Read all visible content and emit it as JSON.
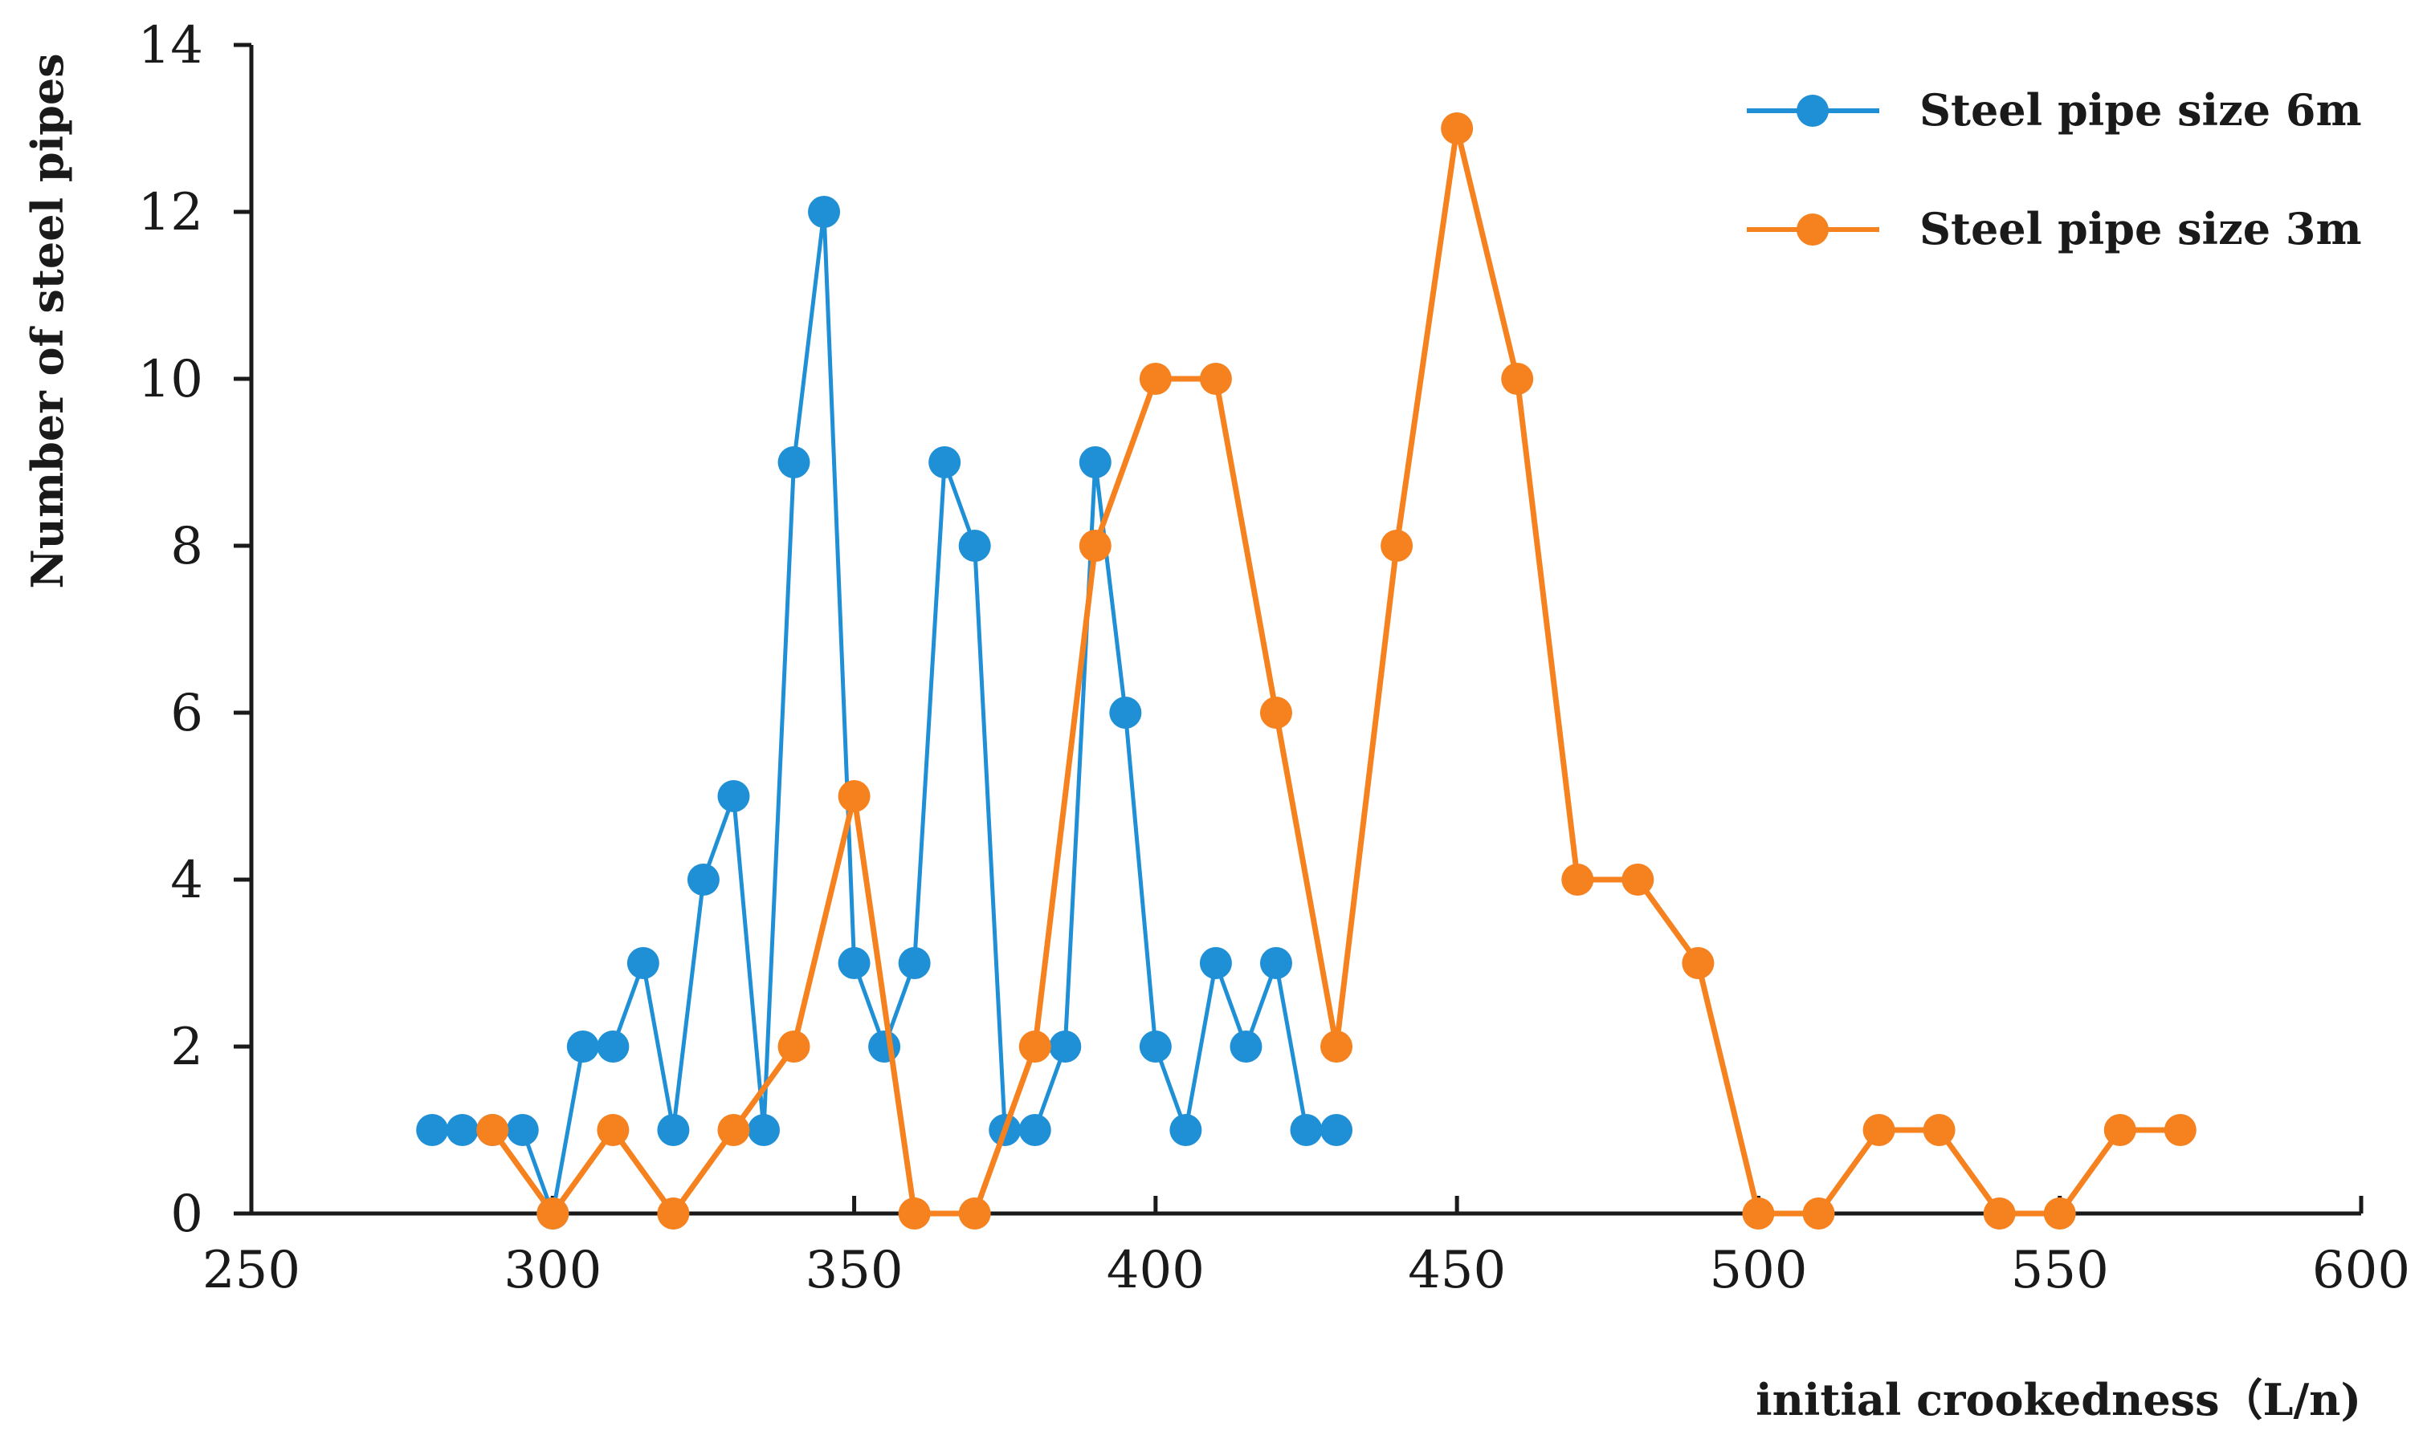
{
  "chart_data": {
    "type": "line",
    "title": "",
    "xlabel": "initial crookedness（L/n)",
    "ylabel": "Number of steel pipes",
    "xlim": [
      250,
      600
    ],
    "ylim": [
      0,
      14
    ],
    "x_ticks": [
      "250",
      "300",
      "350",
      "400",
      "450",
      "500",
      "550",
      "600"
    ],
    "y_ticks": [
      "0",
      "2",
      "4",
      "6",
      "8",
      "10",
      "12",
      "14"
    ],
    "grid": false,
    "legend_position": "top-right",
    "series": [
      {
        "name": "Steel pipe size 6m",
        "color": "#1f8fd6",
        "x": [
          280,
          285,
          290,
          295,
          300,
          305,
          310,
          315,
          320,
          325,
          330,
          335,
          340,
          345,
          350,
          355,
          360,
          365,
          370,
          375,
          380,
          385,
          390,
          395,
          400,
          405,
          410,
          415,
          420,
          425,
          430
        ],
        "y": [
          1,
          1,
          1,
          1,
          0,
          2,
          2,
          3,
          1,
          4,
          5,
          1,
          9,
          12,
          3,
          2,
          3,
          9,
          8,
          1,
          1,
          2,
          9,
          6,
          2,
          1,
          3,
          2,
          3,
          1,
          1
        ]
      },
      {
        "name": "Steel pipe size 3m",
        "color": "#f5821f",
        "x": [
          290,
          300,
          310,
          320,
          330,
          340,
          350,
          360,
          370,
          380,
          390,
          400,
          410,
          420,
          430,
          440,
          450,
          460,
          470,
          480,
          490,
          500,
          510,
          520,
          530,
          540,
          550,
          560,
          570
        ],
        "y": [
          1,
          0,
          1,
          0,
          1,
          2,
          5,
          0,
          0,
          2,
          8,
          10,
          10,
          6,
          2,
          8,
          13,
          10,
          4,
          4,
          3,
          0,
          0,
          1,
          1,
          0,
          0,
          1,
          1
        ]
      }
    ]
  }
}
